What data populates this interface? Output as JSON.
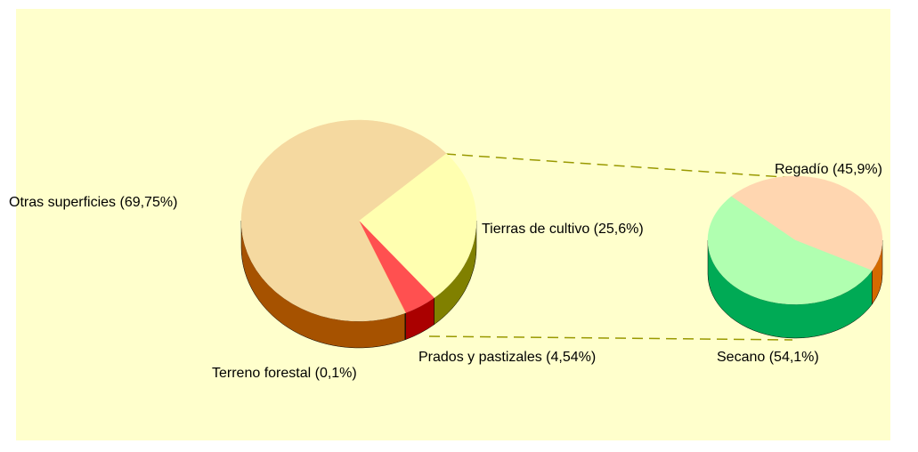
{
  "chart_data": [
    {
      "type": "pie3d",
      "categories": [
        "Tierras de cultivo (25,6%)",
        "Prados y pastizales (4,54%)",
        "Terreno forestal (0,1%)",
        "Otras superficies (69,75%)"
      ],
      "values": [
        25.6,
        4.54,
        0.1,
        69.75
      ],
      "colors": [
        "#ffffb0",
        "#ff5050",
        "#ffcc88",
        "#f5d9a0"
      ],
      "side_colors": [
        "#808000",
        "#aa0000",
        "#804000",
        "#a65200"
      ]
    },
    {
      "type": "pie3d",
      "categories": [
        "Regadío (45,9%)",
        "Secano (54,1%)"
      ],
      "values": [
        45.9,
        54.1
      ],
      "colors": [
        "#ffd6b0",
        "#b0ffb0"
      ],
      "side_colors": [
        "#d46a00",
        "#00aa55"
      ]
    }
  ]
}
